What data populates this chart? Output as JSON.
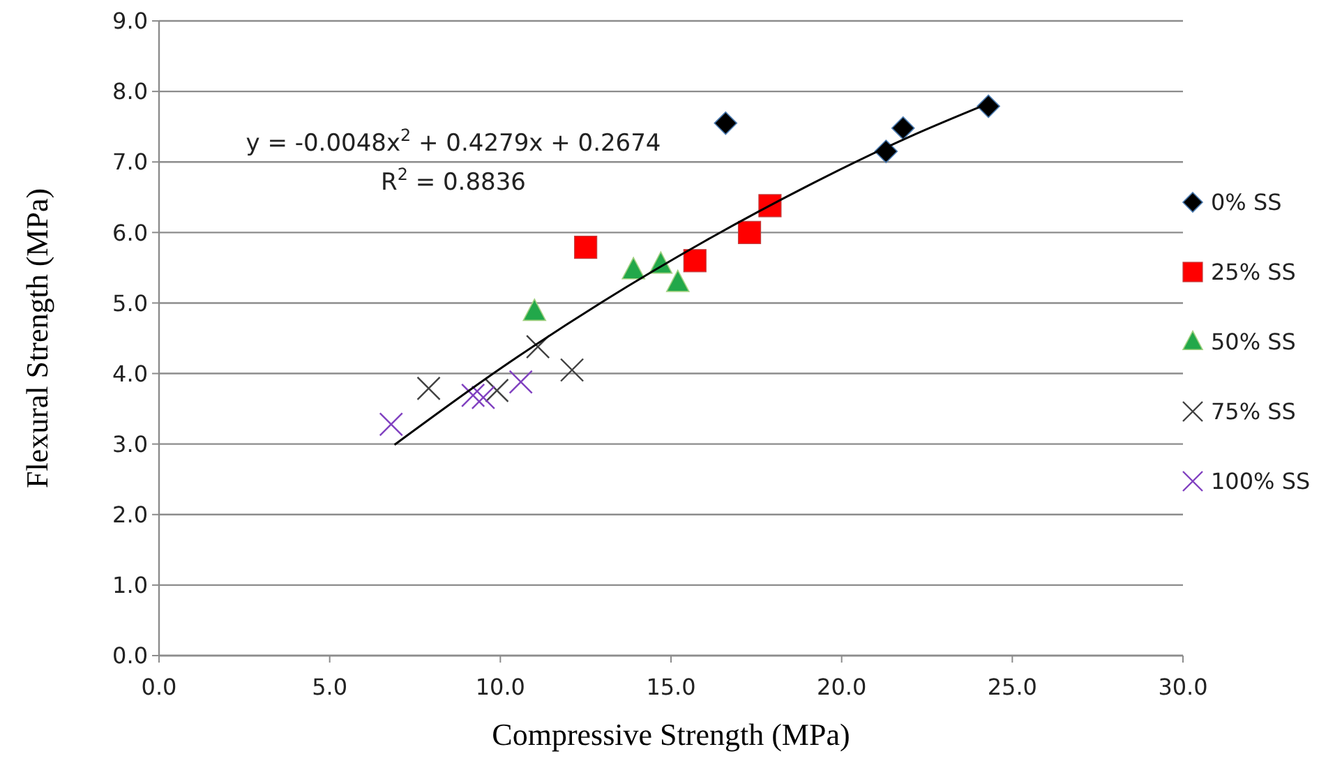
{
  "chart_data": {
    "type": "scatter",
    "xlabel": "Compressive  Strength  (MPa)",
    "ylabel": "Flexural  Strength  (MPa)",
    "xlim": [
      0,
      30
    ],
    "xticks": [
      {
        "value": 0,
        "label": "0.0"
      },
      {
        "value": 5,
        "label": "5.0"
      },
      {
        "value": 10,
        "label": "10.0"
      },
      {
        "value": 15,
        "label": "15.0"
      },
      {
        "value": 20,
        "label": "20.0"
      },
      {
        "value": 25,
        "label": "25.0"
      },
      {
        "value": 30,
        "label": "30.0"
      }
    ],
    "ylim": [
      0,
      9
    ],
    "yticks": [
      {
        "value": 0,
        "label": "0.0"
      },
      {
        "value": 1,
        "label": "1.0"
      },
      {
        "value": 2,
        "label": "2.0"
      },
      {
        "value": 3,
        "label": "3.0"
      },
      {
        "value": 4,
        "label": "4.0"
      },
      {
        "value": 5,
        "label": "5.0"
      },
      {
        "value": 6,
        "label": "6.0"
      },
      {
        "value": 7,
        "label": "7.0"
      },
      {
        "value": 8,
        "label": "8.0"
      },
      {
        "value": 9,
        "label": "9.0"
      }
    ],
    "grid": "y",
    "legend": "right",
    "annotations": [
      "y = -0.0048x$^{2}$ + 0.4279x + 0.2674",
      "R$^{2}$ = 0.8836"
    ],
    "series": [
      {
        "name": "0% SS",
        "color": "#000000",
        "marker": "diamond",
        "x": [
          16.6,
          21.3,
          21.8,
          24.3
        ],
        "values": [
          7.55,
          7.15,
          7.48,
          7.79
        ]
      },
      {
        "name": "25% SS",
        "color": "#ff0000",
        "marker": "square",
        "x": [
          12.5,
          15.7,
          17.3,
          17.9
        ],
        "values": [
          5.79,
          5.6,
          6.0,
          6.38
        ]
      },
      {
        "name": "50% SS",
        "color": "#22a84a",
        "marker": "triangle",
        "x": [
          11.0,
          13.9,
          14.7,
          15.2
        ],
        "values": [
          4.88,
          5.47,
          5.55,
          5.29
        ]
      },
      {
        "name": "75% SS",
        "color": "#404040",
        "marker": "cross",
        "x": [
          7.9,
          9.9,
          11.1,
          12.1
        ],
        "values": [
          3.79,
          3.76,
          4.38,
          4.05
        ]
      },
      {
        "name": "100% SS",
        "color": "#8040c0",
        "marker": "cross",
        "x": [
          6.8,
          9.2,
          9.5,
          10.6
        ],
        "values": [
          3.28,
          3.69,
          3.66,
          3.88
        ]
      },
      {
        "type": "line",
        "color": "#000000",
        "marker": "none",
        "x": [
          6.9,
          10,
          13,
          16,
          19,
          22,
          24.3
        ],
        "values": [
          2.99,
          4.07,
          5.02,
          5.88,
          6.66,
          7.36,
          7.83
        ]
      }
    ]
  }
}
